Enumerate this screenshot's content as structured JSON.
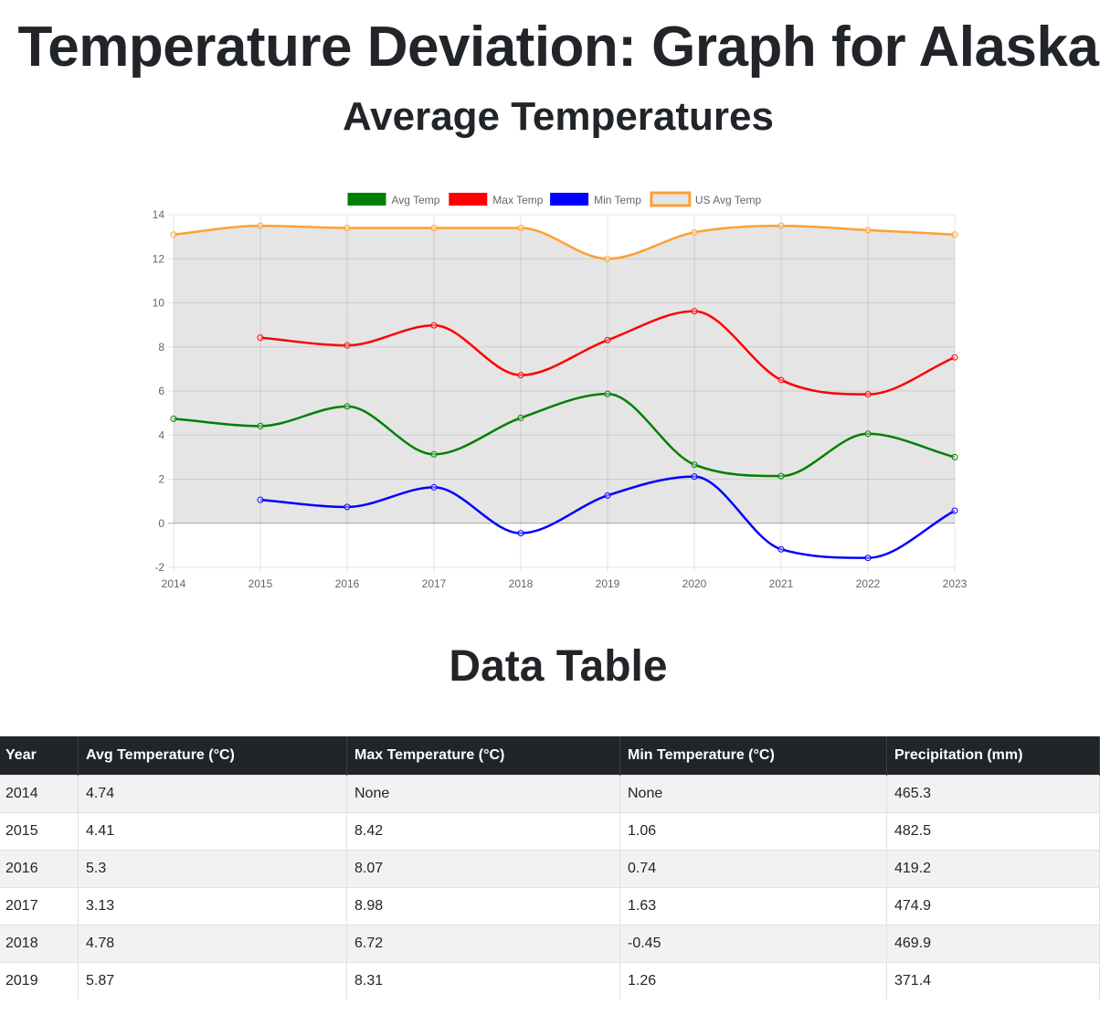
{
  "page": {
    "title": "Temperature Deviation: Graph for Alaska",
    "chart_heading": "Average Temperatures",
    "table_heading": "Data Table"
  },
  "chart_data": {
    "type": "line",
    "x": [
      "2014",
      "2015",
      "2016",
      "2017",
      "2018",
      "2019",
      "2020",
      "2021",
      "2022",
      "2023"
    ],
    "ylim": [
      -2,
      14
    ],
    "yticks": [
      "-2",
      "0",
      "2",
      "4",
      "6",
      "8",
      "10",
      "12",
      "14"
    ],
    "grid": true,
    "legend_position": "top",
    "series": [
      {
        "name": "Avg Temp",
        "color": "#008000",
        "fill": false,
        "values": [
          4.74,
          4.41,
          5.3,
          3.13,
          4.78,
          5.87,
          2.66,
          2.14,
          4.06,
          3.0
        ]
      },
      {
        "name": "Max Temp",
        "color": "#ff0000",
        "fill": false,
        "values": [
          null,
          8.42,
          8.07,
          8.98,
          6.72,
          8.31,
          9.62,
          6.5,
          5.85,
          7.53
        ]
      },
      {
        "name": "Min Temp",
        "color": "#0000ff",
        "fill": false,
        "values": [
          null,
          1.06,
          0.74,
          1.63,
          -0.45,
          1.26,
          2.12,
          -1.18,
          -1.57,
          0.57
        ]
      },
      {
        "name": "US Avg Temp",
        "color": "#ffa033",
        "fill": true,
        "fill_color": "#e5e5e5",
        "values": [
          13.1,
          13.5,
          13.4,
          13.4,
          13.4,
          12.0,
          13.2,
          13.5,
          13.3,
          13.1
        ]
      }
    ]
  },
  "table": {
    "headers": [
      "Year",
      "Avg Temperature (°C)",
      "Max Temperature (°C)",
      "Min Temperature (°C)",
      "Precipitation (mm)"
    ],
    "rows": [
      [
        "2014",
        "4.74",
        "None",
        "None",
        "465.3"
      ],
      [
        "2015",
        "4.41",
        "8.42",
        "1.06",
        "482.5"
      ],
      [
        "2016",
        "5.3",
        "8.07",
        "0.74",
        "419.2"
      ],
      [
        "2017",
        "3.13",
        "8.98",
        "1.63",
        "474.9"
      ],
      [
        "2018",
        "4.78",
        "6.72",
        "-0.45",
        "469.9"
      ],
      [
        "2019",
        "5.87",
        "8.31",
        "1.26",
        "371.4"
      ]
    ]
  }
}
